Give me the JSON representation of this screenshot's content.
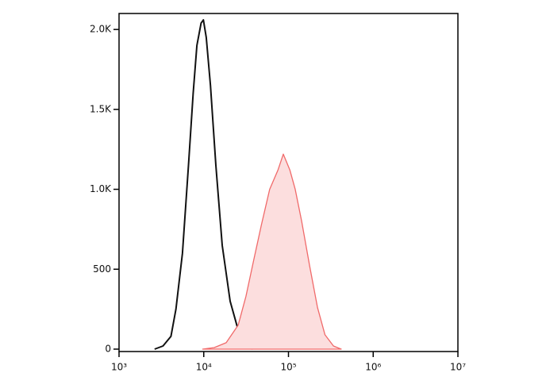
{
  "chart_data": {
    "type": "line",
    "log_x": true,
    "xlim": [
      1000,
      10000000
    ],
    "ylim": [
      -15,
      2100
    ],
    "xticks": [
      {
        "value": 1000,
        "label": "10³"
      },
      {
        "value": 10000,
        "label": "10⁴"
      },
      {
        "value": 100000,
        "label": "10⁵"
      },
      {
        "value": 1000000,
        "label": "10⁶"
      },
      {
        "value": 10000000,
        "label": "10⁷"
      }
    ],
    "yticks": [
      0,
      500,
      {
        "value": 1000,
        "label": "1.0K"
      },
      {
        "value": 1500,
        "label": "1.5K"
      },
      {
        "value": 2000,
        "label": "2.0K"
      }
    ],
    "series": [
      {
        "color": "#111111",
        "filled": false,
        "x": [
          2630,
          3300,
          4100,
          4700,
          5600,
          6600,
          7500,
          8300,
          9300,
          9900,
          10700,
          12000,
          13900,
          16500,
          20500,
          25500,
          31500,
          37500
        ],
        "values": [
          0,
          20,
          80,
          250,
          600,
          1150,
          1600,
          1900,
          2040,
          2060,
          1950,
          1650,
          1150,
          650,
          300,
          120,
          30,
          0
        ]
      },
      {
        "color": "#f06a6a",
        "filled": true,
        "fill_color": "#fcdede",
        "x": [
          9700,
          13300,
          18400,
          25500,
          31500,
          39000,
          48000,
          60000,
          75000,
          87000,
          104000,
          120000,
          143000,
          178000,
          220000,
          270000,
          340000,
          420000
        ],
        "values": [
          0,
          10,
          40,
          150,
          330,
          560,
          780,
          1000,
          1120,
          1220,
          1120,
          1000,
          800,
          520,
          260,
          90,
          20,
          0
        ]
      }
    ]
  }
}
